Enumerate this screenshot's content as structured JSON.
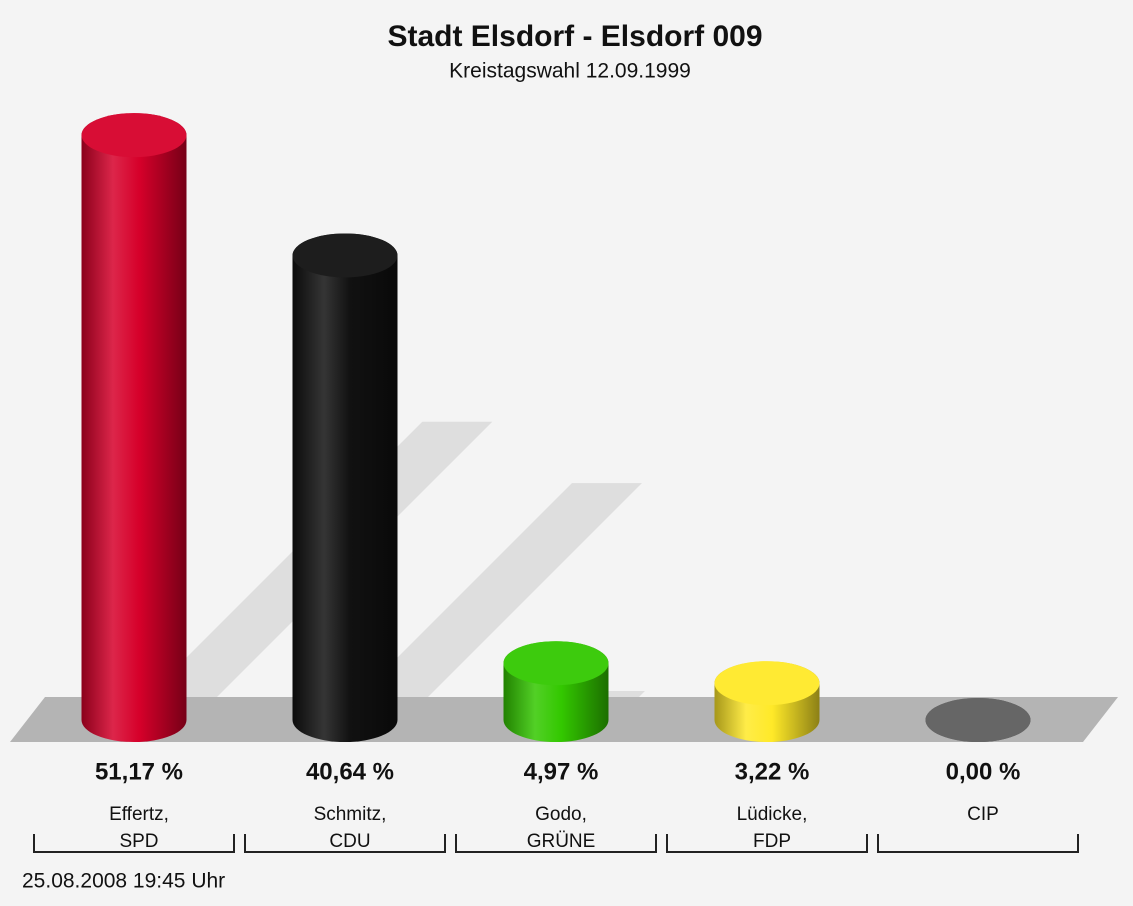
{
  "chart_data": {
    "type": "bar",
    "title": "Stadt Elsdorf - Elsdorf 009",
    "subtitle": "Kreistagswahl 12.09.1999",
    "categories": [
      [
        "Effertz,",
        "SPD"
      ],
      [
        "Schmitz,",
        "CDU"
      ],
      [
        "Godo,",
        "GRÜNE"
      ],
      [
        "Lüdicke,",
        "FDP"
      ],
      [
        "CIP"
      ]
    ],
    "values": [
      51.17,
      40.64,
      4.97,
      3.22,
      0.0
    ],
    "value_labels": [
      "51,17 %",
      "40,64 %",
      "4,97 %",
      "3,22 %",
      "0,00 %"
    ],
    "colors": [
      "#d6002a",
      "#111111",
      "#33c800",
      "#ffe928",
      "#666666"
    ],
    "footnote": "25.08.2008 19:45 Uhr"
  }
}
